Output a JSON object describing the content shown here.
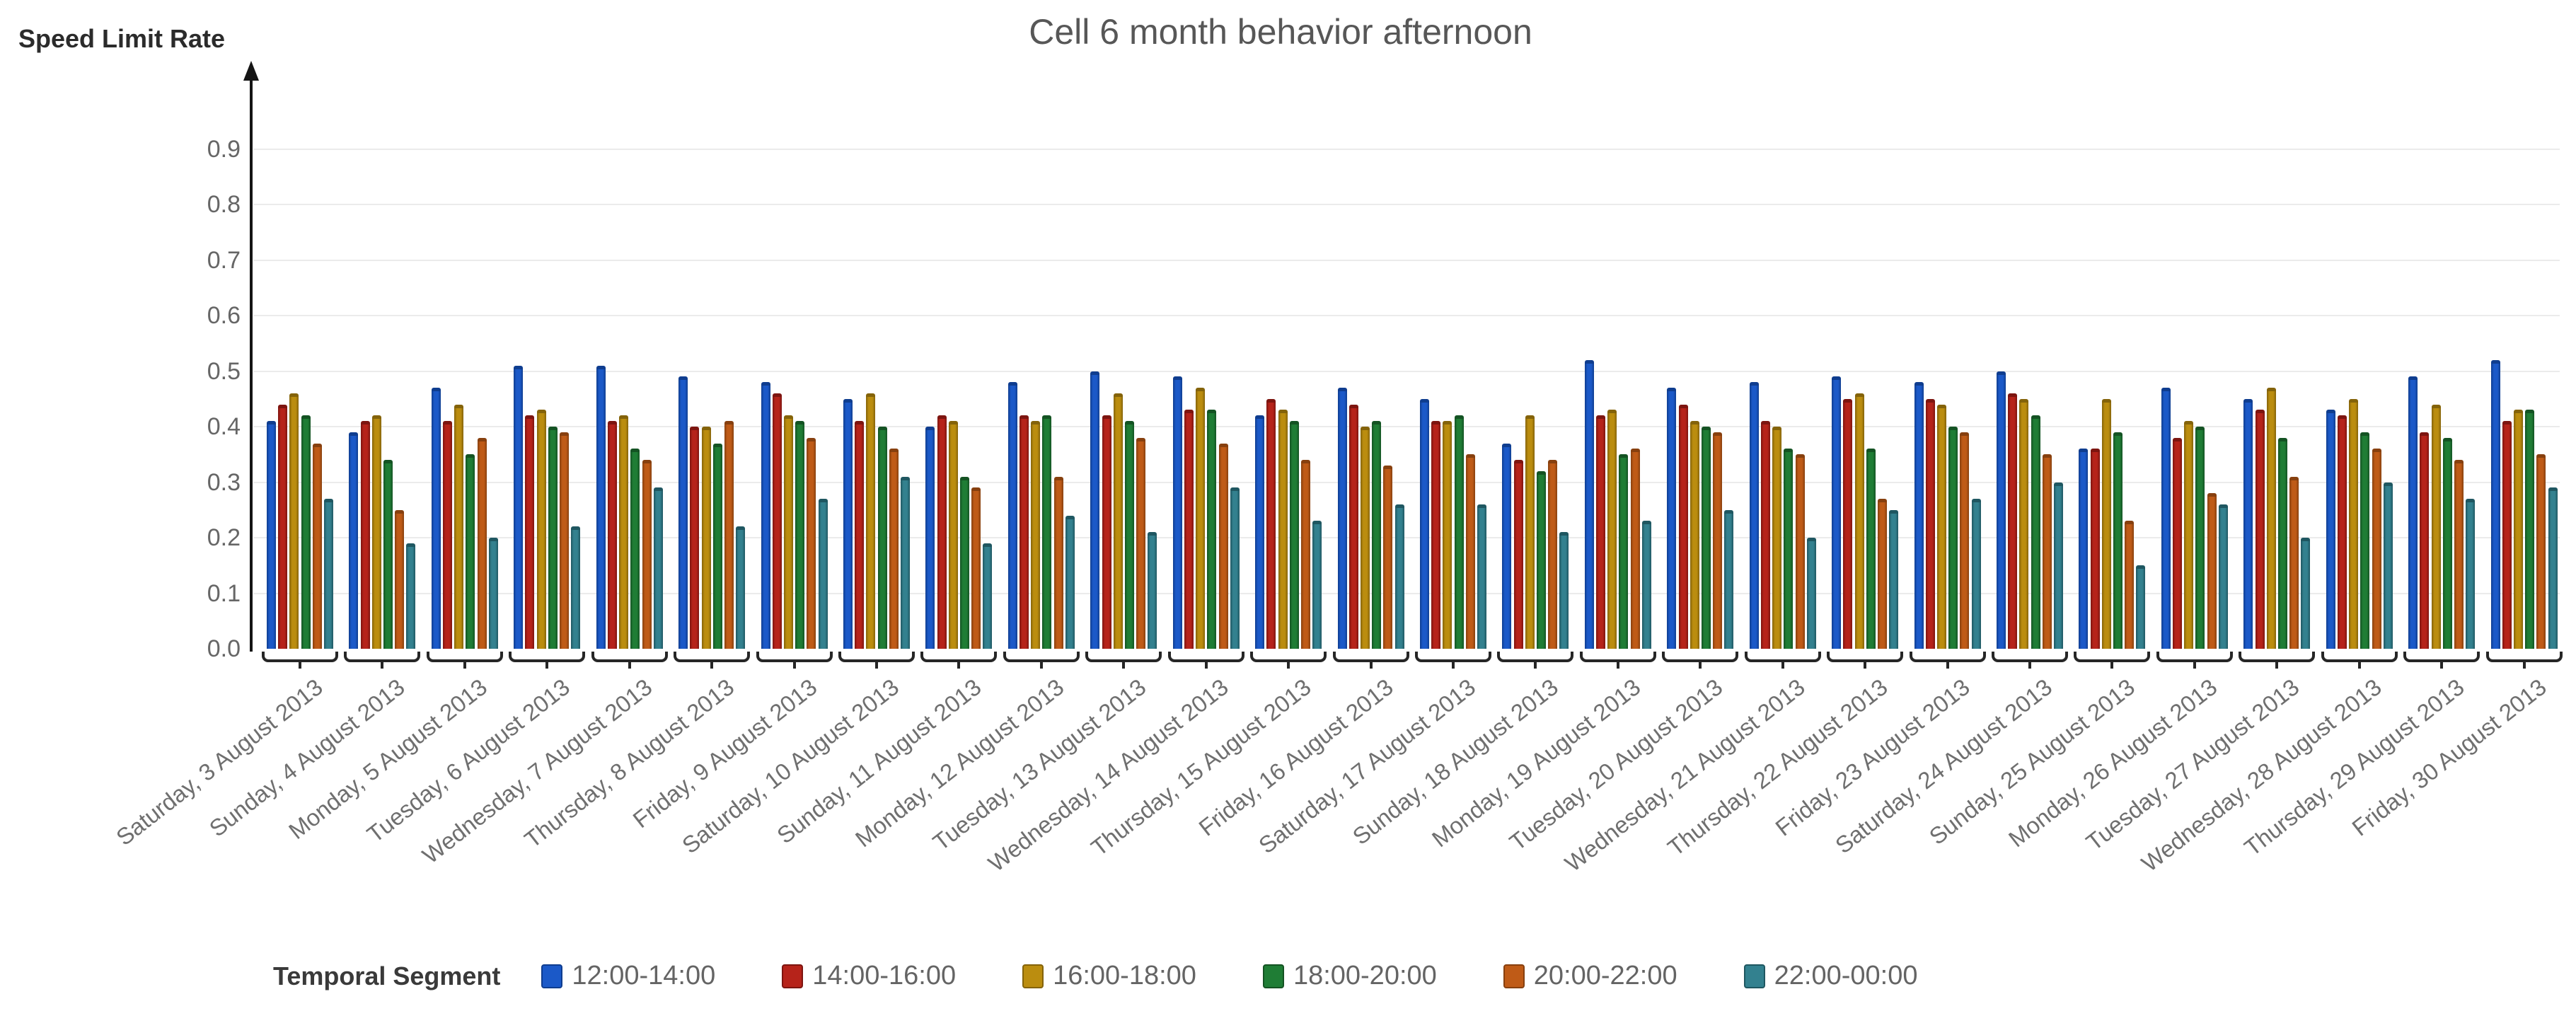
{
  "title": "Cell 6 month behavior afternoon",
  "y_axis": {
    "label": "Speed Limit Rate"
  },
  "legend": {
    "label": "Temporal Segment"
  },
  "chart_data": {
    "type": "bar",
    "title": "Cell 6 month behavior afternoon",
    "ylabel": "Speed Limit Rate",
    "legend_title": "Temporal Segment",
    "legend_position": "bottom",
    "grid": true,
    "ylim": [
      0,
      0.95
    ],
    "yticks": [
      0.0,
      0.1,
      0.2,
      0.3,
      0.4,
      0.5,
      0.6,
      0.7,
      0.8,
      0.9
    ],
    "categories": [
      "Saturday, 3 August 2013",
      "Sunday, 4 August 2013",
      "Monday, 5 August 2013",
      "Tuesday, 6 August 2013",
      "Wednesday, 7 August 2013",
      "Thursday, 8 August 2013",
      "Friday, 9 August 2013",
      "Saturday, 10 August 2013",
      "Sunday, 11 August 2013",
      "Monday, 12 August 2013",
      "Tuesday, 13 August 2013",
      "Wednesday, 14 August 2013",
      "Thursday, 15 August 2013",
      "Friday, 16 August 2013",
      "Saturday, 17 August 2013",
      "Sunday, 18 August 2013",
      "Monday, 19 August 2013",
      "Tuesday, 20 August 2013",
      "Wednesday, 21 August 2013",
      "Thursday, 22 August 2013",
      "Friday, 23 August 2013",
      "Saturday, 24 August 2013",
      "Sunday, 25 August 2013",
      "Monday, 26 August 2013",
      "Tuesday, 27 August 2013",
      "Wednesday, 28 August 2013",
      "Thursday, 29 August 2013",
      "Friday, 30 August 2013"
    ],
    "series": [
      {
        "name": "12:00-14:00",
        "color": "#1b59c8",
        "edge": "#0f3d8f",
        "values": [
          0.41,
          0.39,
          0.47,
          0.51,
          0.51,
          0.49,
          0.48,
          0.45,
          0.4,
          0.48,
          0.5,
          0.49,
          0.42,
          0.47,
          0.45,
          0.37,
          0.52,
          0.47,
          0.48,
          0.49,
          0.48,
          0.5,
          0.36,
          0.47,
          0.45,
          0.43,
          0.49,
          0.52
        ]
      },
      {
        "name": "14:00-16:00",
        "color": "#b6231a",
        "edge": "#7d1510",
        "values": [
          0.44,
          0.41,
          0.41,
          0.42,
          0.41,
          0.4,
          0.46,
          0.41,
          0.42,
          0.42,
          0.42,
          0.43,
          0.45,
          0.44,
          0.41,
          0.34,
          0.42,
          0.44,
          0.41,
          0.45,
          0.45,
          0.46,
          0.36,
          0.38,
          0.43,
          0.42,
          0.39,
          0.41
        ]
      },
      {
        "name": "16:00-18:00",
        "color": "#bb8d0f",
        "edge": "#84630a",
        "values": [
          0.46,
          0.42,
          0.44,
          0.43,
          0.42,
          0.4,
          0.42,
          0.46,
          0.41,
          0.41,
          0.46,
          0.47,
          0.43,
          0.4,
          0.41,
          0.42,
          0.43,
          0.41,
          0.4,
          0.46,
          0.44,
          0.45,
          0.45,
          0.41,
          0.47,
          0.45,
          0.44,
          0.43
        ]
      },
      {
        "name": "18:00-20:00",
        "color": "#1f7d35",
        "edge": "#145323",
        "values": [
          0.42,
          0.34,
          0.35,
          0.4,
          0.36,
          0.37,
          0.41,
          0.4,
          0.31,
          0.42,
          0.41,
          0.43,
          0.41,
          0.41,
          0.42,
          0.32,
          0.35,
          0.4,
          0.36,
          0.36,
          0.4,
          0.42,
          0.39,
          0.4,
          0.38,
          0.39,
          0.38,
          0.43
        ]
      },
      {
        "name": "20:00-22:00",
        "color": "#bf5b17",
        "edge": "#87400f",
        "values": [
          0.37,
          0.25,
          0.38,
          0.39,
          0.34,
          0.41,
          0.38,
          0.36,
          0.29,
          0.31,
          0.38,
          0.37,
          0.34,
          0.33,
          0.35,
          0.34,
          0.36,
          0.39,
          0.35,
          0.27,
          0.39,
          0.35,
          0.23,
          0.28,
          0.31,
          0.36,
          0.34,
          0.35
        ]
      },
      {
        "name": "22:00-00:00",
        "color": "#33818f",
        "edge": "#1f5761",
        "values": [
          0.27,
          0.19,
          0.2,
          0.22,
          0.29,
          0.22,
          0.27,
          0.31,
          0.19,
          0.24,
          0.21,
          0.29,
          0.23,
          0.26,
          0.26,
          0.21,
          0.23,
          0.25,
          0.2,
          0.25,
          0.27,
          0.3,
          0.15,
          0.26,
          0.2,
          0.3,
          0.27,
          0.29
        ]
      }
    ]
  }
}
